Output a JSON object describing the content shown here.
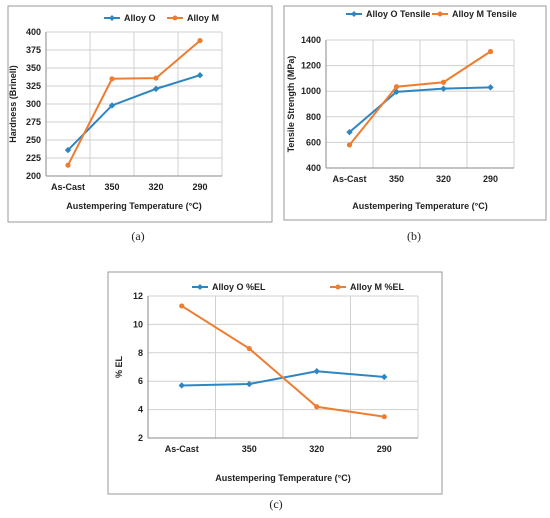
{
  "colors": {
    "alloy_o": "#2E86C1",
    "alloy_m": "#ED7D31",
    "grid": "#d0d0d0"
  },
  "chart_data": [
    {
      "type": "line",
      "panel_label": "(a)",
      "title": "",
      "categories": [
        "As-Cast",
        "350",
        "320",
        "290"
      ],
      "series": [
        {
          "name": "Alloy O",
          "values": [
            236,
            298,
            321,
            340
          ]
        },
        {
          "name": "Alloy M",
          "values": [
            215,
            335,
            336,
            388
          ]
        }
      ],
      "xlabel": "Austempering Temperature (°C)",
      "ylabel": "Hardness (Brinell)",
      "ylim": [
        200,
        400
      ],
      "yticks": [
        200,
        225,
        250,
        275,
        300,
        325,
        350,
        375,
        400
      ],
      "grid": true,
      "legend": "top"
    },
    {
      "type": "line",
      "panel_label": "(b)",
      "title": "",
      "categories": [
        "As-Cast",
        "350",
        "320",
        "290"
      ],
      "series": [
        {
          "name": "Alloy O Tensile",
          "values": [
            680,
            995,
            1020,
            1030
          ]
        },
        {
          "name": "Alloy M Tensile",
          "values": [
            580,
            1035,
            1070,
            1310
          ]
        }
      ],
      "xlabel": "Austempering Temperature (°C)",
      "ylabel": "Tensile Strength (MPa)",
      "ylim": [
        400,
        1400
      ],
      "yticks": [
        400,
        600,
        800,
        1000,
        1200,
        1400
      ],
      "grid": true,
      "legend": "top"
    },
    {
      "type": "line",
      "panel_label": "(c)",
      "title": "",
      "categories": [
        "As-Cast",
        "350",
        "320",
        "290"
      ],
      "series": [
        {
          "name": "Alloy O %EL",
          "values": [
            5.7,
            5.8,
            6.7,
            6.3
          ]
        },
        {
          "name": "Alloy M %EL",
          "values": [
            11.3,
            8.3,
            4.2,
            3.5
          ]
        }
      ],
      "xlabel": "Austempering Temperature (°C)",
      "ylabel": "% EL",
      "ylim": [
        2,
        12
      ],
      "yticks": [
        2,
        4,
        6,
        8,
        10,
        12
      ],
      "grid": true,
      "legend": "top"
    }
  ]
}
